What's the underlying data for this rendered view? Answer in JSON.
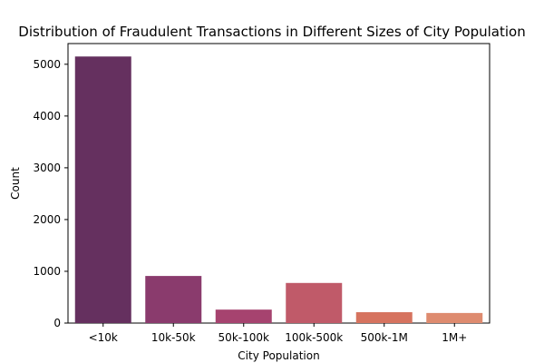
{
  "chart_data": {
    "type": "bar",
    "title": "Distribution of Fraudulent Transactions in Different Sizes of City Population",
    "xlabel": "City Population",
    "ylabel": "Count",
    "categories": [
      "<10k",
      "10k-50k",
      "50k-100k",
      "100k-500k",
      "500k-1M",
      "1M+"
    ],
    "values": [
      5150,
      910,
      260,
      775,
      210,
      195
    ],
    "ylim": [
      0,
      5400
    ],
    "yticks": [
      0,
      1000,
      2000,
      3000,
      4000,
      5000
    ],
    "ytick_labels": [
      "0",
      "1000",
      "2000",
      "3000",
      "4000",
      "5000"
    ],
    "colors": [
      "#65305f",
      "#8a3b6d",
      "#a6436f",
      "#c05a69",
      "#d6735f",
      "#de8b6f"
    ],
    "grid": false,
    "legend": "none"
  }
}
